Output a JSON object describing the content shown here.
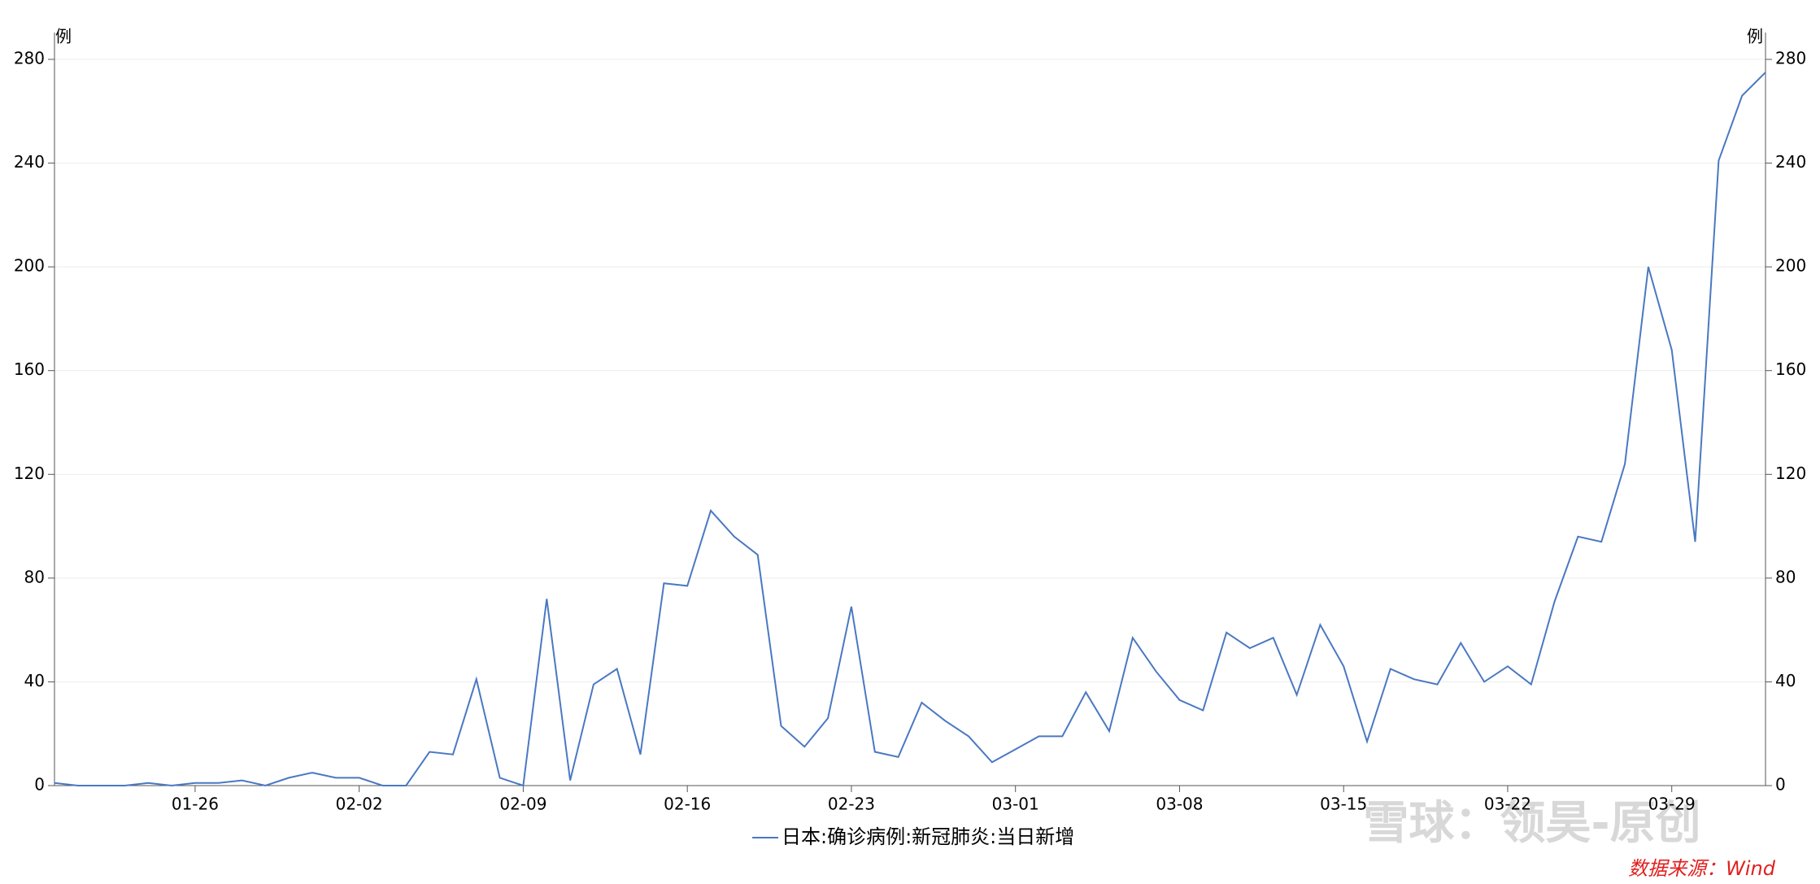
{
  "chart_data": {
    "type": "line",
    "y_label": "例",
    "categories": [
      null,
      null,
      null,
      null,
      null,
      null,
      "01-26",
      null,
      null,
      null,
      null,
      null,
      null,
      "02-02",
      null,
      null,
      null,
      null,
      null,
      null,
      "02-09",
      null,
      null,
      null,
      null,
      null,
      null,
      "02-16",
      null,
      null,
      null,
      null,
      null,
      null,
      "02-23",
      null,
      null,
      null,
      null,
      null,
      null,
      "03-01",
      null,
      null,
      null,
      null,
      null,
      null,
      "03-08",
      null,
      null,
      null,
      null,
      null,
      null,
      "03-15",
      null,
      null,
      null,
      null,
      null,
      null,
      "03-22",
      null,
      null,
      null,
      null,
      null,
      null,
      "03-29",
      null,
      null,
      null,
      null
    ],
    "series": [
      {
        "name": "日本:确诊病例:新冠肺炎:当日新增",
        "color": "#4a78c2",
        "values": [
          1,
          0,
          0,
          0,
          1,
          0,
          1,
          1,
          2,
          0,
          3,
          5,
          3,
          3,
          0,
          0,
          13,
          12,
          41,
          3,
          0,
          72,
          2,
          39,
          45,
          12,
          78,
          77,
          106,
          96,
          89,
          23,
          15,
          26,
          69,
          13,
          11,
          32,
          25,
          19,
          9,
          14,
          19,
          19,
          36,
          21,
          57,
          44,
          33,
          29,
          59,
          53,
          57,
          35,
          62,
          46,
          17,
          45,
          41,
          39,
          55,
          40,
          46,
          39,
          71,
          96,
          94,
          124,
          200,
          168,
          94,
          241,
          266,
          275
        ]
      }
    ],
    "ylim": [
      0,
      280
    ],
    "yticks": [
      0,
      40,
      80,
      120,
      160,
      200,
      240,
      280
    ],
    "grid": true,
    "watermark": "雪球：领昊-原创",
    "source": "数据来源：Wind"
  }
}
